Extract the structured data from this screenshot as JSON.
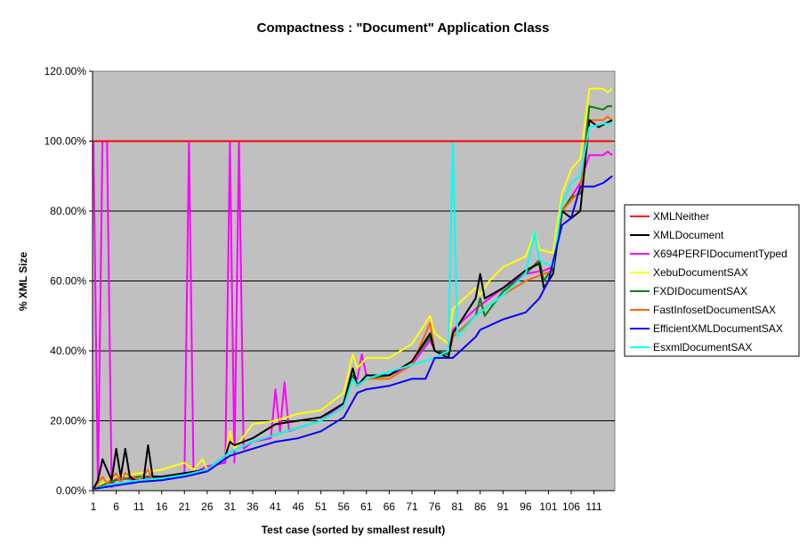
{
  "chart_data": {
    "type": "line",
    "title": "Compactness : \"Document\" Application Class",
    "xlabel": "Test case (sorted by smallest result)",
    "ylabel": "% XML Size",
    "x_ticks": [
      "1",
      "6",
      "11",
      "16",
      "21",
      "26",
      "31",
      "36",
      "41",
      "46",
      "51",
      "56",
      "61",
      "66",
      "71",
      "76",
      "81",
      "86",
      "91",
      "96",
      "101",
      "106",
      "111"
    ],
    "xlim": [
      1,
      115
    ],
    "y_ticks": [
      "0.00%",
      "20.00%",
      "40.00%",
      "60.00%",
      "80.00%",
      "100.00%",
      "120.00%"
    ],
    "ylim": [
      0,
      120
    ],
    "grid": "horizontal",
    "legend_position": "right",
    "plot_background": "#c0c0c0",
    "series": [
      {
        "name": "XMLNeither",
        "color": "#ff0000",
        "points": [
          [
            1,
            100
          ],
          [
            115,
            100
          ]
        ]
      },
      {
        "name": "XMLDocument",
        "color": "#000000",
        "points": [
          [
            1,
            0.5
          ],
          [
            2,
            3
          ],
          [
            3,
            9
          ],
          [
            4,
            6
          ],
          [
            5,
            3
          ],
          [
            6,
            12
          ],
          [
            7,
            4
          ],
          [
            8,
            12
          ],
          [
            9,
            4
          ],
          [
            10,
            3
          ],
          [
            11,
            3
          ],
          [
            12,
            3
          ],
          [
            13,
            13
          ],
          [
            14,
            4
          ],
          [
            16,
            4
          ],
          [
            21,
            5
          ],
          [
            26,
            6
          ],
          [
            30,
            10
          ],
          [
            31,
            14
          ],
          [
            32,
            13
          ],
          [
            36,
            15
          ],
          [
            41,
            19
          ],
          [
            46,
            20
          ],
          [
            51,
            21
          ],
          [
            56,
            25
          ],
          [
            58,
            35
          ],
          [
            59,
            30
          ],
          [
            61,
            33
          ],
          [
            66,
            33
          ],
          [
            71,
            37
          ],
          [
            75,
            45
          ],
          [
            76,
            40
          ],
          [
            79,
            38
          ],
          [
            80,
            45
          ],
          [
            85,
            55
          ],
          [
            86,
            62
          ],
          [
            87,
            55
          ],
          [
            91,
            58
          ],
          [
            96,
            63
          ],
          [
            99,
            65
          ],
          [
            100,
            58
          ],
          [
            102,
            62
          ],
          [
            104,
            80
          ],
          [
            106,
            78
          ],
          [
            108,
            80
          ],
          [
            110,
            106
          ],
          [
            112,
            104
          ],
          [
            115,
            106
          ]
        ]
      },
      {
        "name": "X694PERFIDocumentTyped",
        "color": "#ff00ff",
        "points": [
          [
            1,
            100
          ],
          [
            2,
            1
          ],
          [
            3,
            100
          ],
          [
            4,
            100
          ],
          [
            5,
            1
          ],
          [
            6,
            4
          ],
          [
            10,
            3
          ],
          [
            16,
            4
          ],
          [
            21,
            4
          ],
          [
            22,
            100
          ],
          [
            23,
            5
          ],
          [
            26,
            7
          ],
          [
            30,
            8
          ],
          [
            31,
            100
          ],
          [
            32,
            8
          ],
          [
            33,
            100
          ],
          [
            34,
            12
          ],
          [
            36,
            14
          ],
          [
            40,
            15
          ],
          [
            41,
            29
          ],
          [
            42,
            17
          ],
          [
            43,
            31
          ],
          [
            44,
            17
          ],
          [
            46,
            18
          ],
          [
            51,
            20
          ],
          [
            56,
            25
          ],
          [
            58,
            33
          ],
          [
            59,
            32
          ],
          [
            60,
            39
          ],
          [
            61,
            33
          ],
          [
            66,
            33
          ],
          [
            71,
            36
          ],
          [
            75,
            43
          ],
          [
            76,
            40
          ],
          [
            79,
            39
          ],
          [
            80,
            46
          ],
          [
            85,
            52
          ],
          [
            91,
            58
          ],
          [
            96,
            62
          ],
          [
            100,
            63
          ],
          [
            102,
            64
          ],
          [
            104,
            80
          ],
          [
            108,
            88
          ],
          [
            110,
            96
          ],
          [
            113,
            96
          ],
          [
            114,
            97
          ],
          [
            115,
            96
          ]
        ]
      },
      {
        "name": "XebuDocumentSAX",
        "color": "#ffff00",
        "points": [
          [
            1,
            0.5
          ],
          [
            4,
            3
          ],
          [
            6,
            4
          ],
          [
            11,
            5
          ],
          [
            16,
            6
          ],
          [
            21,
            8
          ],
          [
            23,
            6
          ],
          [
            25,
            9
          ],
          [
            26,
            6
          ],
          [
            30,
            10
          ],
          [
            31,
            17
          ],
          [
            32,
            12
          ],
          [
            36,
            19
          ],
          [
            41,
            20
          ],
          [
            46,
            22
          ],
          [
            51,
            23
          ],
          [
            56,
            28
          ],
          [
            58,
            39
          ],
          [
            59,
            35
          ],
          [
            61,
            38
          ],
          [
            66,
            38
          ],
          [
            71,
            42
          ],
          [
            75,
            50
          ],
          [
            76,
            45
          ],
          [
            79,
            42
          ],
          [
            80,
            52
          ],
          [
            85,
            58
          ],
          [
            86,
            56
          ],
          [
            88,
            60
          ],
          [
            91,
            64
          ],
          [
            96,
            67
          ],
          [
            98,
            74
          ],
          [
            99,
            69
          ],
          [
            102,
            68
          ],
          [
            104,
            85
          ],
          [
            106,
            92
          ],
          [
            108,
            95
          ],
          [
            110,
            115
          ],
          [
            113,
            115
          ],
          [
            114,
            114
          ],
          [
            115,
            115
          ]
        ]
      },
      {
        "name": "FXDIDocumentSAX",
        "color": "#008000",
        "points": [
          [
            1,
            0.5
          ],
          [
            4,
            2
          ],
          [
            6,
            3
          ],
          [
            11,
            4
          ],
          [
            16,
            4
          ],
          [
            21,
            5
          ],
          [
            26,
            6
          ],
          [
            31,
            11
          ],
          [
            36,
            14
          ],
          [
            41,
            16
          ],
          [
            46,
            18
          ],
          [
            51,
            20
          ],
          [
            56,
            24
          ],
          [
            58,
            33
          ],
          [
            59,
            30
          ],
          [
            61,
            32
          ],
          [
            66,
            33
          ],
          [
            71,
            37
          ],
          [
            75,
            44
          ],
          [
            76,
            40
          ],
          [
            79,
            39
          ],
          [
            80,
            44
          ],
          [
            85,
            50
          ],
          [
            86,
            55
          ],
          [
            87,
            50
          ],
          [
            91,
            57
          ],
          [
            96,
            62
          ],
          [
            99,
            66
          ],
          [
            100,
            60
          ],
          [
            102,
            64
          ],
          [
            104,
            80
          ],
          [
            106,
            84
          ],
          [
            108,
            85
          ],
          [
            110,
            110
          ],
          [
            113,
            109
          ],
          [
            114,
            110
          ],
          [
            115,
            110
          ]
        ]
      },
      {
        "name": "FastInfosetDocumentSAX",
        "color": "#ff6600",
        "points": [
          [
            1,
            0.5
          ],
          [
            3,
            4
          ],
          [
            4,
            2
          ],
          [
            6,
            5
          ],
          [
            7,
            2
          ],
          [
            8,
            5
          ],
          [
            11,
            3
          ],
          [
            13,
            6
          ],
          [
            14,
            3
          ],
          [
            16,
            4
          ],
          [
            21,
            5
          ],
          [
            26,
            6
          ],
          [
            31,
            11
          ],
          [
            36,
            14
          ],
          [
            41,
            16
          ],
          [
            46,
            18
          ],
          [
            51,
            20
          ],
          [
            56,
            24
          ],
          [
            58,
            32
          ],
          [
            59,
            30
          ],
          [
            61,
            32
          ],
          [
            66,
            32
          ],
          [
            71,
            36
          ],
          [
            75,
            48
          ],
          [
            76,
            40
          ],
          [
            79,
            38
          ],
          [
            80,
            44
          ],
          [
            85,
            50
          ],
          [
            91,
            56
          ],
          [
            96,
            60
          ],
          [
            100,
            62
          ],
          [
            102,
            63
          ],
          [
            104,
            80
          ],
          [
            108,
            86
          ],
          [
            110,
            106
          ],
          [
            113,
            106
          ],
          [
            114,
            107
          ],
          [
            115,
            106
          ]
        ]
      },
      {
        "name": "EfficientXMLDocumentSAX",
        "color": "#0000ff",
        "points": [
          [
            1,
            0.5
          ],
          [
            6,
            1.5
          ],
          [
            11,
            2.5
          ],
          [
            16,
            3
          ],
          [
            21,
            4
          ],
          [
            26,
            5.5
          ],
          [
            31,
            10
          ],
          [
            36,
            12
          ],
          [
            41,
            14
          ],
          [
            46,
            15
          ],
          [
            51,
            17
          ],
          [
            56,
            21
          ],
          [
            59,
            28
          ],
          [
            61,
            29
          ],
          [
            66,
            30
          ],
          [
            71,
            32
          ],
          [
            74,
            32
          ],
          [
            76,
            38
          ],
          [
            80,
            38
          ],
          [
            85,
            44
          ],
          [
            86,
            46
          ],
          [
            91,
            49
          ],
          [
            96,
            51
          ],
          [
            99,
            55
          ],
          [
            101,
            60
          ],
          [
            104,
            76
          ],
          [
            106,
            78
          ],
          [
            108,
            87
          ],
          [
            111,
            87
          ],
          [
            113,
            88
          ],
          [
            115,
            90
          ]
        ]
      },
      {
        "name": "EsxmlDocumentSAX",
        "color": "#00ffff",
        "points": [
          [
            1,
            0.5
          ],
          [
            6,
            2
          ],
          [
            11,
            3
          ],
          [
            16,
            3.5
          ],
          [
            21,
            4.5
          ],
          [
            26,
            6
          ],
          [
            31,
            11
          ],
          [
            36,
            14
          ],
          [
            41,
            16
          ],
          [
            46,
            18
          ],
          [
            51,
            20
          ],
          [
            56,
            24
          ],
          [
            58,
            32
          ],
          [
            59,
            30
          ],
          [
            61,
            32
          ],
          [
            66,
            34
          ],
          [
            71,
            36
          ],
          [
            76,
            38
          ],
          [
            79,
            40
          ],
          [
            80,
            100
          ],
          [
            81,
            44
          ],
          [
            85,
            50
          ],
          [
            91,
            56
          ],
          [
            96,
            62
          ],
          [
            98,
            74
          ],
          [
            99,
            66
          ],
          [
            102,
            64
          ],
          [
            104,
            82
          ],
          [
            106,
            88
          ],
          [
            108,
            90
          ],
          [
            110,
            104
          ],
          [
            113,
            105
          ],
          [
            115,
            105
          ]
        ]
      }
    ]
  }
}
